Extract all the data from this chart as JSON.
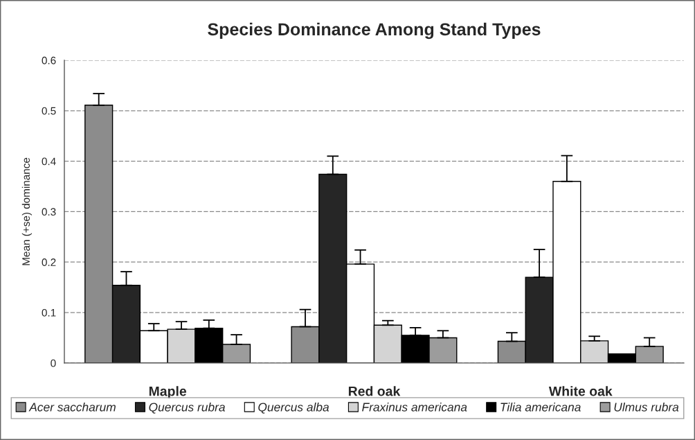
{
  "chart_data": {
    "type": "bar",
    "title": "Species Dominance Among Stand Types",
    "ylabel": "Mean (+se) dominance",
    "categories": [
      "Maple",
      "Red oak",
      "White oak"
    ],
    "series": [
      {
        "name": "Acer saccharum",
        "color": "#8c8c8c",
        "values": [
          0.511,
          0.072,
          0.043
        ],
        "errors": [
          [
            0.511,
            0.534
          ],
          [
            0.072,
            0.106
          ],
          [
            0.043,
            0.06
          ]
        ]
      },
      {
        "name": "Quercus rubra",
        "color": "#262626",
        "values": [
          0.154,
          0.374,
          0.17
        ],
        "errors": [
          [
            0.154,
            0.181
          ],
          [
            0.374,
            0.41
          ],
          [
            0.17,
            0.225
          ]
        ]
      },
      {
        "name": "Quercus alba",
        "color": "#ffffff",
        "values": [
          0.064,
          0.196,
          0.36
        ],
        "errors": [
          [
            0.064,
            0.078
          ],
          [
            0.196,
            0.224
          ],
          [
            0.36,
            0.411
          ]
        ]
      },
      {
        "name": "Fraxinus americana",
        "color": "#d4d4d4",
        "values": [
          0.067,
          0.075,
          0.044
        ],
        "errors": [
          [
            0.067,
            0.082
          ],
          [
            0.075,
            0.084
          ],
          [
            0.044,
            0.053
          ]
        ]
      },
      {
        "name": "Tilia americana",
        "color": "#000000",
        "values": [
          0.069,
          0.055,
          0.018
        ],
        "errors": [
          [
            0.069,
            0.085
          ],
          [
            0.055,
            0.07
          ],
          null
        ]
      },
      {
        "name": "Ulmus rubra",
        "color": "#9c9c9c",
        "values": [
          0.037,
          0.05,
          0.033
        ],
        "errors": [
          [
            0.037,
            0.056
          ],
          [
            0.05,
            0.064
          ],
          [
            0.033,
            0.05
          ]
        ]
      }
    ],
    "ylim": [
      0,
      0.6
    ],
    "yticks": [
      0,
      0.1,
      0.2,
      0.3,
      0.4,
      0.5,
      0.6
    ],
    "grid": "y",
    "legend": "bottom"
  }
}
